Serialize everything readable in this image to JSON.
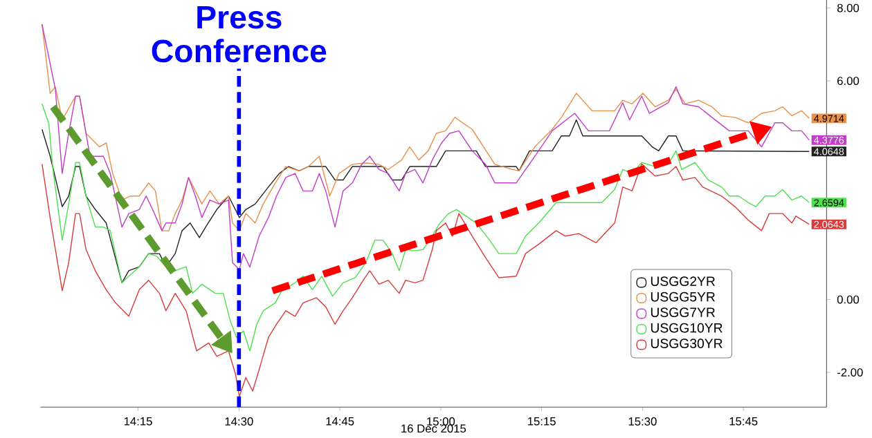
{
  "chart_data": {
    "type": "line",
    "xlabel": "16 Dec 2015",
    "xlim": [
      14.008,
      15.956
    ],
    "ylim": [
      -2.95,
      8.22
    ],
    "xticks": [
      {
        "value": 14.25,
        "label": "14:15"
      },
      {
        "value": 14.5,
        "label": "14:30"
      },
      {
        "value": 14.75,
        "label": "14:45"
      },
      {
        "value": 15.0,
        "label": "15:00"
      },
      {
        "value": 15.25,
        "label": "15:15"
      },
      {
        "value": 15.5,
        "label": "15:30"
      },
      {
        "value": 15.75,
        "label": "15:45"
      }
    ],
    "yticks": [
      {
        "value": -2,
        "label": "-2.00"
      },
      {
        "value": 0,
        "label": "0.00"
      },
      {
        "value": 2,
        "label": null
      },
      {
        "value": 4,
        "label": null
      },
      {
        "value": 6,
        "label": "6.00"
      },
      {
        "value": 8,
        "label": "8.00"
      }
    ],
    "legend": "bottom right",
    "ref_lines": [
      {
        "axis": "x",
        "value": 14.5,
        "label": "Press Conference",
        "color": "#0000ff",
        "line_style": "dashed"
      }
    ],
    "series": [
      {
        "name": "USGG2YR",
        "color": "#222222",
        "x": [
          14.012,
          14.032,
          14.062,
          14.078,
          14.095,
          14.105,
          14.121,
          14.144,
          14.171,
          14.21,
          14.227,
          14.253,
          14.276,
          14.303,
          14.319,
          14.342,
          14.359,
          14.379,
          14.402,
          14.418,
          14.445,
          14.474,
          14.491,
          14.501,
          14.517,
          14.54,
          14.573,
          14.6,
          14.623,
          14.649,
          14.672,
          14.715,
          14.738,
          14.758,
          14.781,
          14.857,
          14.88,
          14.903,
          14.923,
          14.989,
          15.012,
          15.088,
          15.111,
          15.187,
          15.194,
          15.22,
          15.276,
          15.299,
          15.319,
          15.336,
          15.352,
          15.498,
          15.524,
          15.54,
          15.564,
          15.583,
          15.6,
          15.913
        ],
        "values": [
          4.67,
          3.94,
          2.55,
          2.84,
          3.65,
          3.65,
          2.84,
          2.47,
          2.1,
          0.46,
          0.79,
          0.9,
          1.26,
          1.26,
          0.9,
          1.26,
          1.89,
          2.1,
          1.7,
          2.0,
          2.47,
          2.84,
          2.47,
          2.25,
          2.47,
          2.62,
          3.09,
          3.46,
          3.65,
          3.53,
          3.65,
          3.65,
          3.28,
          3.28,
          3.65,
          3.65,
          3.28,
          3.28,
          3.65,
          3.65,
          4.08,
          4.08,
          3.65,
          3.65,
          3.53,
          4.08,
          4.08,
          4.49,
          4.49,
          4.93,
          4.49,
          4.49,
          4.19,
          4.08,
          4.49,
          4.49,
          4.08,
          4.0648
        ],
        "value_labels": [
          null,
          null,
          null,
          null,
          null,
          null,
          null,
          null,
          null,
          null,
          null,
          null,
          null,
          null,
          null,
          null,
          null,
          null,
          null,
          null,
          null,
          null,
          null,
          null,
          null,
          null,
          null,
          null,
          null,
          null,
          null,
          null,
          null,
          null,
          null,
          null,
          null,
          null,
          null,
          null,
          null,
          null,
          null,
          null,
          null,
          null,
          null,
          null,
          null,
          null,
          null,
          null,
          null,
          null,
          null,
          null,
          null,
          "4.0648"
        ]
      },
      {
        "name": "USGG5YR",
        "color": "#e8914a",
        "x": [
          14.012,
          14.032,
          14.045,
          14.062,
          14.095,
          14.105,
          14.121,
          14.154,
          14.171,
          14.187,
          14.21,
          14.23,
          14.253,
          14.276,
          14.293,
          14.309,
          14.326,
          14.342,
          14.359,
          14.375,
          14.392,
          14.408,
          14.428,
          14.451,
          14.474,
          14.484,
          14.501,
          14.517,
          14.54,
          14.56,
          14.59,
          14.616,
          14.649,
          14.672,
          14.699,
          14.725,
          14.748,
          14.781,
          14.814,
          14.847,
          14.87,
          14.903,
          14.923,
          14.946,
          14.969,
          14.989,
          15.012,
          15.035,
          15.078,
          15.134,
          15.177,
          15.194,
          15.233,
          15.276,
          15.299,
          15.336,
          15.375,
          15.431,
          15.451,
          15.474,
          15.501,
          15.531,
          15.564,
          15.583,
          15.606,
          15.639,
          15.672,
          15.696,
          15.729,
          15.762,
          15.795,
          15.828,
          15.847,
          15.87,
          15.894,
          15.913
        ],
        "values": [
          7.56,
          5.66,
          5.84,
          4.93,
          5.58,
          5.58,
          4.56,
          4.19,
          4.3,
          3.46,
          2.73,
          2.84,
          2.84,
          3.2,
          2.98,
          1.89,
          1.89,
          2.36,
          2.73,
          3.35,
          2.98,
          2.62,
          2.98,
          2.62,
          2.84,
          2.1,
          1.89,
          2.36,
          2.1,
          2.62,
          3.2,
          3.65,
          3.53,
          3.65,
          3.93,
          2.84,
          3.46,
          3.71,
          3.75,
          3.71,
          3.57,
          3.83,
          4.19,
          3.83,
          4.08,
          4.56,
          4.63,
          5.0,
          4.67,
          3.71,
          3.57,
          3.53,
          4.19,
          4.67,
          5.0,
          5.66,
          5.18,
          5.18,
          5.47,
          5.37,
          5.66,
          5.29,
          5.47,
          5.77,
          5.37,
          5.47,
          5.29,
          5.04,
          5.0,
          4.85,
          5.11,
          5.18,
          5.29,
          5.04,
          5.18,
          4.9714
        ],
        "value_labels": [
          null,
          null,
          null,
          null,
          null,
          null,
          null,
          null,
          null,
          null,
          null,
          null,
          null,
          null,
          null,
          null,
          null,
          null,
          null,
          null,
          null,
          null,
          null,
          null,
          null,
          null,
          null,
          null,
          null,
          null,
          null,
          null,
          null,
          null,
          null,
          null,
          null,
          null,
          null,
          null,
          null,
          null,
          null,
          null,
          null,
          null,
          null,
          null,
          null,
          null,
          null,
          null,
          null,
          null,
          null,
          null,
          null,
          null,
          null,
          null,
          null,
          null,
          null,
          null,
          null,
          null,
          null,
          null,
          null,
          null,
          null,
          null,
          null,
          null,
          null,
          "4.9714"
        ]
      },
      {
        "name": "USGG7YR",
        "color": "#c23fc8",
        "x": [
          14.012,
          14.045,
          14.062,
          14.078,
          14.095,
          14.105,
          14.121,
          14.131,
          14.164,
          14.181,
          14.21,
          14.227,
          14.253,
          14.27,
          14.286,
          14.309,
          14.319,
          14.342,
          14.359,
          14.375,
          14.392,
          14.408,
          14.428,
          14.451,
          14.474,
          14.484,
          14.501,
          14.511,
          14.527,
          14.55,
          14.573,
          14.593,
          14.616,
          14.639,
          14.659,
          14.682,
          14.699,
          14.715,
          14.738,
          14.758,
          14.781,
          14.804,
          14.824,
          14.847,
          14.87,
          14.897,
          14.913,
          14.936,
          14.956,
          14.979,
          15.002,
          15.022,
          15.045,
          15.078,
          15.111,
          15.134,
          15.187,
          15.233,
          15.276,
          15.332,
          15.366,
          15.418,
          15.451,
          15.468,
          15.498,
          15.517,
          15.564,
          15.583,
          15.6,
          15.639,
          15.672,
          15.715,
          15.762,
          15.795,
          15.828,
          15.847,
          15.87,
          15.894,
          15.913
        ],
        "values": [
          7.56,
          5.77,
          3.46,
          4.56,
          5.58,
          5.58,
          4.56,
          3.93,
          3.93,
          3.46,
          1.99,
          2.36,
          2.47,
          2.84,
          2.47,
          1.89,
          2.1,
          2.1,
          2.62,
          3.35,
          2.84,
          2.25,
          2.73,
          2.62,
          2.73,
          1.01,
          0.82,
          1.26,
          0.89,
          1.74,
          2.25,
          2.84,
          3.35,
          3.46,
          2.98,
          2.98,
          3.46,
          2.98,
          1.99,
          2.98,
          3.2,
          3.71,
          3.93,
          3.57,
          3.46,
          2.98,
          3.46,
          3.57,
          3.2,
          3.83,
          4.3,
          4.56,
          4.63,
          4.08,
          3.71,
          3.2,
          3.2,
          3.93,
          4.63,
          5.11,
          4.63,
          4.63,
          5.4,
          4.93,
          5.58,
          5.11,
          5.4,
          5.84,
          5.37,
          5.29,
          5.0,
          4.63,
          4.63,
          4.19,
          4.85,
          4.85,
          4.63,
          4.63,
          4.3776
        ],
        "value_labels": [
          null,
          null,
          null,
          null,
          null,
          null,
          null,
          null,
          null,
          null,
          null,
          null,
          null,
          null,
          null,
          null,
          null,
          null,
          null,
          null,
          null,
          null,
          null,
          null,
          null,
          null,
          null,
          null,
          null,
          null,
          null,
          null,
          null,
          null,
          null,
          null,
          null,
          null,
          null,
          null,
          null,
          null,
          null,
          null,
          null,
          null,
          null,
          null,
          null,
          null,
          null,
          null,
          null,
          null,
          null,
          null,
          null,
          null,
          null,
          null,
          null,
          null,
          null,
          null,
          null,
          null,
          null,
          null,
          null,
          null,
          null,
          null,
          null,
          null,
          null,
          null,
          null,
          null,
          "4.3776"
        ]
      },
      {
        "name": "USGG10YR",
        "color": "#4fe04f",
        "x": [
          14.012,
          14.029,
          14.039,
          14.062,
          14.078,
          14.095,
          14.105,
          14.121,
          14.144,
          14.164,
          14.181,
          14.21,
          14.227,
          14.253,
          14.276,
          14.296,
          14.319,
          14.342,
          14.369,
          14.385,
          14.408,
          14.441,
          14.461,
          14.478,
          14.494,
          14.511,
          14.527,
          14.544,
          14.56,
          14.59,
          14.606,
          14.639,
          14.659,
          14.682,
          14.705,
          14.732,
          14.758,
          14.788,
          14.814,
          14.837,
          14.857,
          14.88,
          14.897,
          14.913,
          14.936,
          14.956,
          14.979,
          14.996,
          15.019,
          15.039,
          15.088,
          15.121,
          15.144,
          15.187,
          15.21,
          15.243,
          15.286,
          15.332,
          15.399,
          15.431,
          15.451,
          15.474,
          15.498,
          15.531,
          15.564,
          15.583,
          15.597,
          15.63,
          15.663,
          15.696,
          15.715,
          15.738,
          15.762,
          15.781,
          15.804,
          15.828,
          15.847,
          15.87,
          15.894,
          15.913
        ],
        "values": [
          5.37,
          4.82,
          3.57,
          1.63,
          2.62,
          3.76,
          3.76,
          2.84,
          1.99,
          1.99,
          1.89,
          0.46,
          0.64,
          0.9,
          1.26,
          1.19,
          0.9,
          0.79,
          0.9,
          0.17,
          0.42,
          0.17,
          0.17,
          -0.57,
          -1.04,
          -0.86,
          -1.41,
          -0.68,
          -0.31,
          -0.09,
          0.24,
          0.46,
          0.64,
          0.27,
          0.64,
          0.09,
          0.46,
          0.6,
          1.01,
          1.63,
          1.63,
          1.26,
          0.79,
          1.37,
          1.34,
          1.37,
          1.74,
          2.07,
          2.36,
          2.47,
          2.1,
          1.63,
          1.26,
          1.26,
          1.74,
          2.1,
          2.66,
          2.66,
          2.66,
          3.02,
          3.57,
          3.46,
          3.76,
          3.65,
          3.72,
          4.08,
          3.57,
          3.76,
          3.28,
          3.09,
          2.84,
          2.84,
          2.66,
          2.55,
          2.84,
          2.84,
          3.02,
          2.73,
          2.84,
          2.6594
        ],
        "value_labels": [
          null,
          null,
          null,
          null,
          null,
          null,
          null,
          null,
          null,
          null,
          null,
          null,
          null,
          null,
          null,
          null,
          null,
          null,
          null,
          null,
          null,
          null,
          null,
          null,
          null,
          null,
          null,
          null,
          null,
          null,
          null,
          null,
          null,
          null,
          null,
          null,
          null,
          null,
          null,
          null,
          null,
          null,
          null,
          null,
          null,
          null,
          null,
          null,
          null,
          null,
          null,
          null,
          null,
          null,
          null,
          null,
          null,
          null,
          null,
          null,
          null,
          null,
          null,
          null,
          null,
          null,
          null,
          null,
          null,
          null,
          null,
          null,
          null,
          null,
          null,
          null,
          null,
          null,
          null,
          "2.6594"
        ]
      },
      {
        "name": "USGG30YR",
        "color": "#d83c3c",
        "x": [
          14.012,
          14.032,
          14.062,
          14.078,
          14.095,
          14.105,
          14.121,
          14.144,
          14.171,
          14.194,
          14.227,
          14.253,
          14.276,
          14.303,
          14.319,
          14.342,
          14.369,
          14.395,
          14.425,
          14.445,
          14.474,
          14.491,
          14.501,
          14.517,
          14.534,
          14.55,
          14.573,
          14.593,
          14.616,
          14.639,
          14.659,
          14.692,
          14.715,
          14.738,
          14.758,
          14.781,
          14.808,
          14.824,
          14.847,
          14.87,
          14.897,
          14.913,
          14.936,
          14.956,
          14.979,
          14.989,
          15.012,
          15.029,
          15.045,
          15.078,
          15.111,
          15.144,
          15.187,
          15.21,
          15.243,
          15.286,
          15.309,
          15.342,
          15.385,
          15.431,
          15.451,
          15.474,
          15.498,
          15.531,
          15.564,
          15.583,
          15.6,
          15.63,
          15.649,
          15.696,
          15.729,
          15.762,
          15.795,
          15.814,
          15.847,
          15.87,
          15.88,
          15.913
        ],
        "values": [
          3.72,
          2.25,
          0.24,
          1.01,
          2.36,
          2.36,
          1.37,
          0.79,
          0.27,
          -0.09,
          -0.46,
          0.27,
          0.53,
          0.17,
          -0.31,
          0.17,
          -0.31,
          -1.41,
          -1.19,
          -1.56,
          -1.41,
          -2.03,
          -2.66,
          -2.14,
          -2.51,
          -1.92,
          -1.04,
          -0.68,
          -0.31,
          -0.46,
          -0.09,
          0.05,
          -0.2,
          -0.68,
          -0.31,
          0.05,
          0.53,
          0.79,
          0.42,
          0.53,
          0.17,
          0.53,
          0.46,
          0.53,
          1.37,
          1.89,
          2.1,
          1.74,
          2.36,
          1.74,
          1.15,
          0.6,
          0.64,
          1.26,
          1.52,
          1.89,
          1.74,
          1.81,
          1.56,
          2.1,
          3.09,
          2.98,
          3.72,
          3.39,
          3.46,
          3.65,
          3.28,
          3.35,
          3.09,
          2.84,
          2.55,
          2.18,
          1.89,
          2.36,
          2.36,
          2.1,
          2.29,
          2.0643
        ],
        "value_labels": [
          null,
          null,
          null,
          null,
          null,
          null,
          null,
          null,
          null,
          null,
          null,
          null,
          null,
          null,
          null,
          null,
          null,
          null,
          null,
          null,
          null,
          null,
          null,
          null,
          null,
          null,
          null,
          null,
          null,
          null,
          null,
          null,
          null,
          null,
          null,
          null,
          null,
          null,
          null,
          null,
          null,
          null,
          null,
          null,
          null,
          null,
          null,
          null,
          null,
          null,
          null,
          null,
          null,
          null,
          null,
          null,
          null,
          null,
          null,
          null,
          null,
          null,
          null,
          null,
          null,
          null,
          null,
          null,
          null,
          null,
          null,
          null,
          null,
          null,
          null,
          null,
          null,
          "2.0643"
        ]
      }
    ]
  }
}
